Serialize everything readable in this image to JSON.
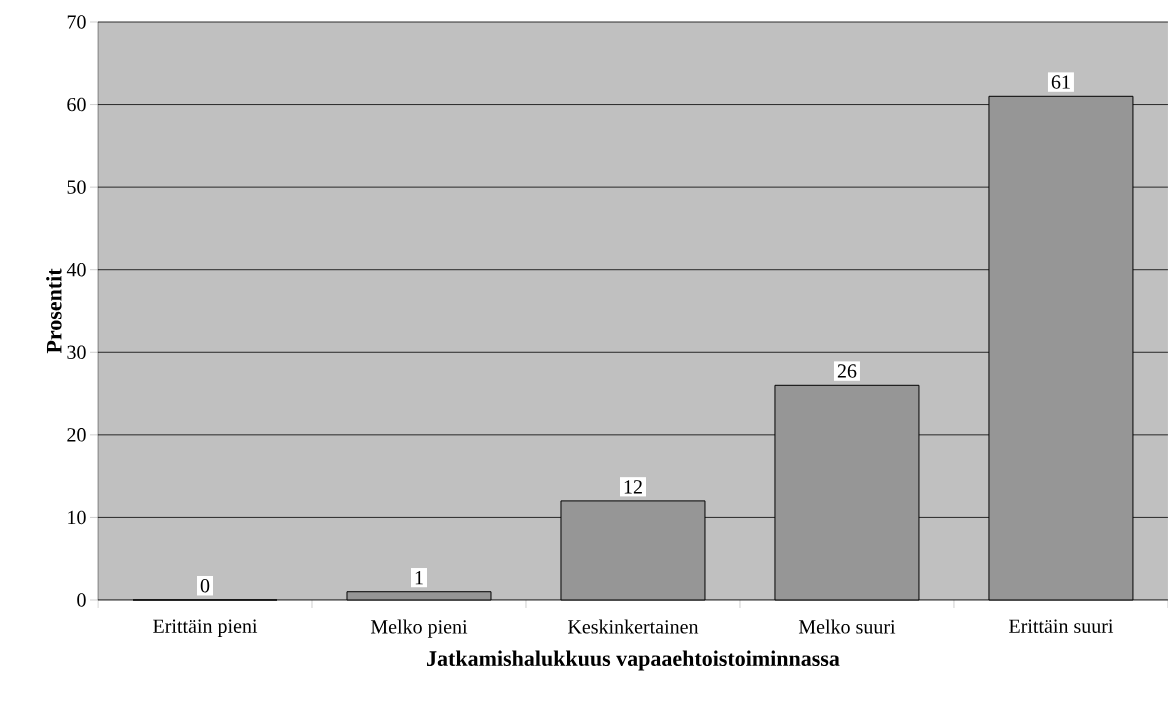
{
  "chart_data": {
    "type": "bar",
    "xlabel": "Jatkamishalukkuus vapaaehtoistoiminnassa",
    "ylabel": "Prosentit",
    "categories": [
      "Erittäin pieni",
      "Melko pieni",
      "Keskinkertainen",
      "Melko suuri",
      "Erittäin suuri"
    ],
    "values": [
      0,
      1,
      12,
      26,
      61
    ],
    "color": "#969696",
    "ylim": [
      0,
      70
    ],
    "yticks": [
      0,
      10,
      20,
      30,
      40,
      50,
      60,
      70
    ],
    "grid": "y",
    "data_labels": true
  }
}
